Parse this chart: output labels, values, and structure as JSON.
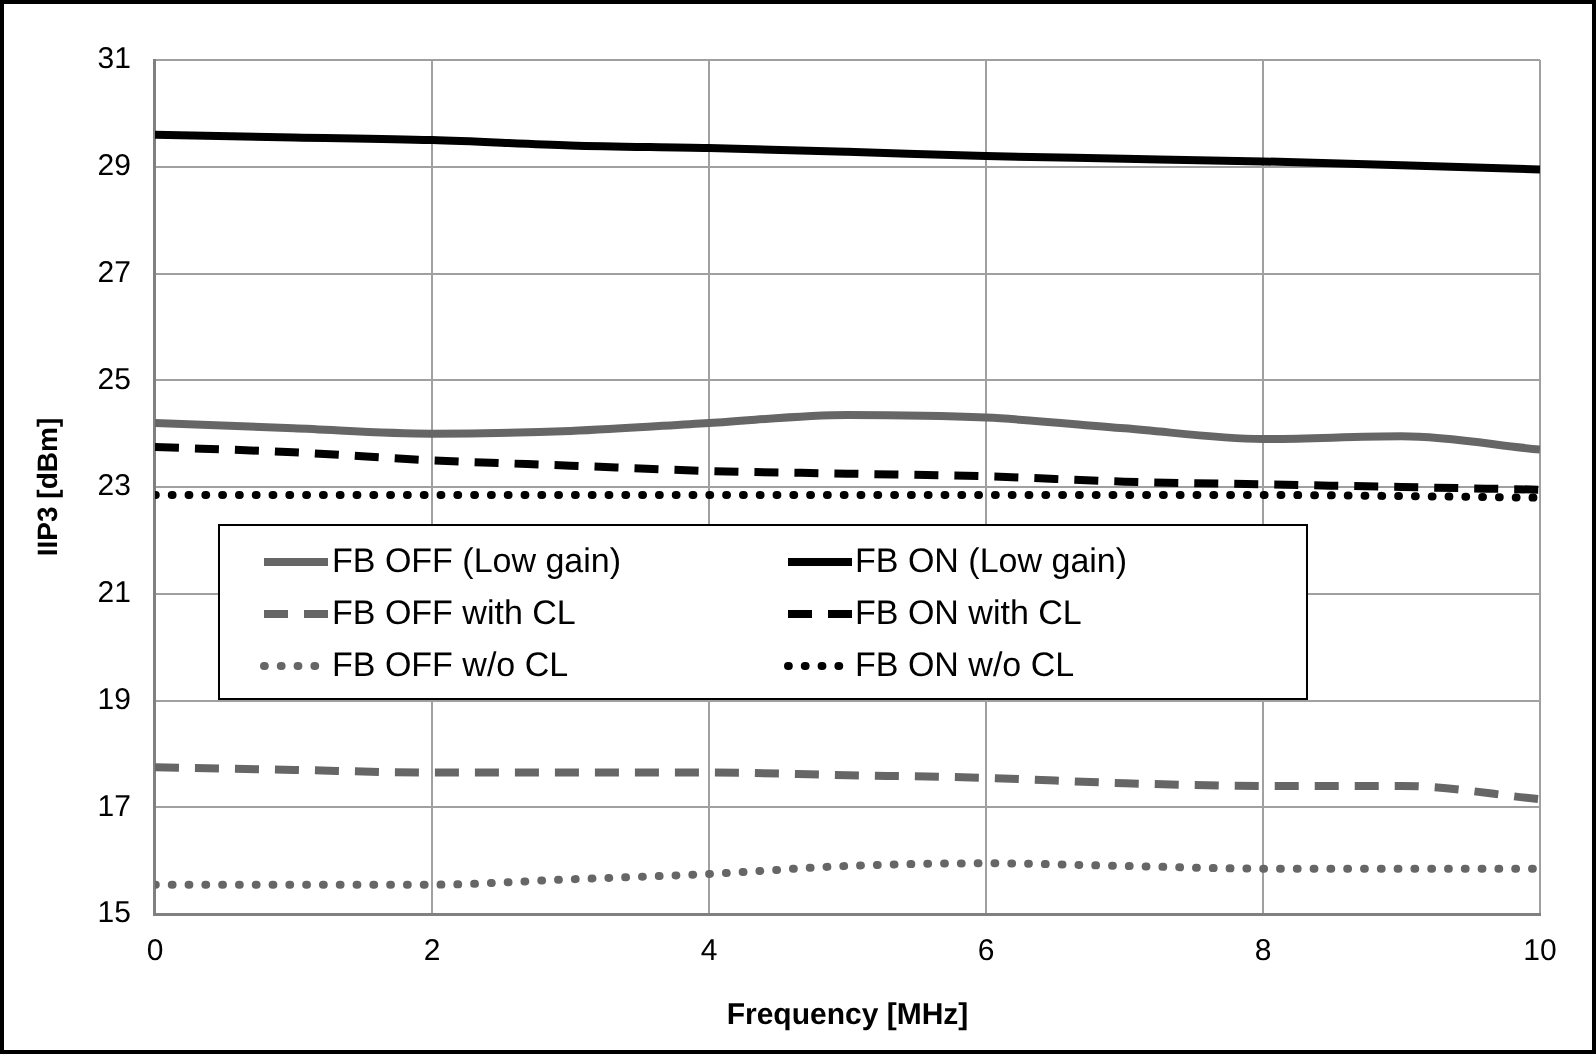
{
  "chart_data": {
    "type": "line",
    "xlabel": "Frequency [MHz]",
    "ylabel": "IIP3 [dBm]",
    "x": [
      0,
      1,
      2,
      3,
      4,
      5,
      6,
      7,
      8,
      9,
      10
    ],
    "xlim": [
      0,
      10
    ],
    "xticks": [
      0,
      2,
      4,
      6,
      8,
      10
    ],
    "ylim": [
      15,
      31
    ],
    "yticks": [
      15,
      17,
      19,
      21,
      23,
      25,
      27,
      29,
      31
    ],
    "grid": true,
    "legend": "left",
    "marker": "none",
    "series": [
      {
        "name": "FB OFF (Low gain)",
        "color": "#666666",
        "line_style": "solid",
        "values": [
          24.2,
          24.1,
          24.0,
          24.05,
          24.2,
          24.35,
          24.3,
          24.1,
          23.9,
          23.95,
          23.7
        ]
      },
      {
        "name": "FB ON (Low gain)",
        "color": "#000000",
        "line_style": "solid",
        "values": [
          29.6,
          29.55,
          29.5,
          29.4,
          29.35,
          29.28,
          29.2,
          29.15,
          29.1,
          29.03,
          28.95
        ]
      },
      {
        "name": "FB OFF with CL",
        "color": "#666666",
        "line_style": "dashed",
        "values": [
          17.75,
          17.7,
          17.65,
          17.65,
          17.65,
          17.6,
          17.55,
          17.45,
          17.4,
          17.4,
          17.15
        ]
      },
      {
        "name": "FB ON with CL",
        "color": "#000000",
        "line_style": "dashed",
        "values": [
          23.75,
          23.65,
          23.5,
          23.4,
          23.3,
          23.25,
          23.2,
          23.1,
          23.05,
          23.0,
          22.95
        ]
      },
      {
        "name": "FB OFF w/o CL",
        "color": "#666666",
        "line_style": "dotted",
        "values": [
          15.55,
          15.55,
          15.55,
          15.65,
          15.75,
          15.9,
          15.95,
          15.9,
          15.85,
          15.85,
          15.85
        ]
      },
      {
        "name": "FB ON w/o CL",
        "color": "#000000",
        "line_style": "dotted",
        "values": [
          22.85,
          22.85,
          22.85,
          22.85,
          22.85,
          22.85,
          22.85,
          22.85,
          22.85,
          22.83,
          22.8
        ]
      }
    ]
  }
}
